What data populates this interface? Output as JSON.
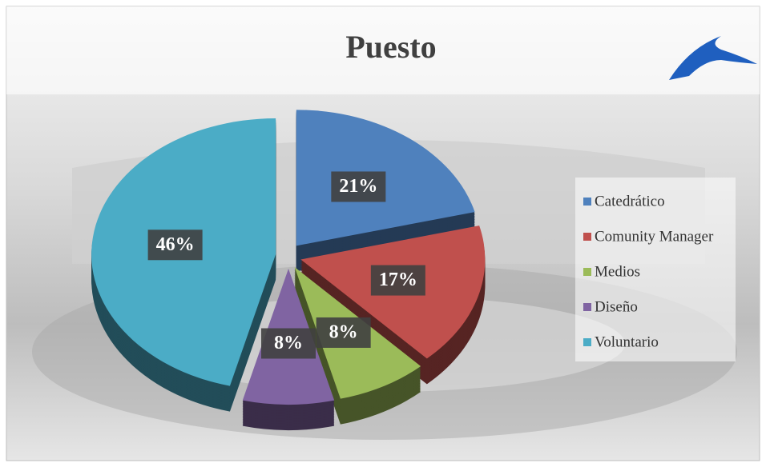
{
  "chart_data": {
    "type": "pie",
    "title": "Puesto",
    "categories": [
      "Catedrático",
      "Comunity Manager",
      "Medios",
      "Diseño",
      "Voluntario"
    ],
    "values": [
      21,
      17,
      8,
      8,
      46
    ],
    "value_labels": [
      "21%",
      "17%",
      "8%",
      "8%",
      "46%"
    ],
    "colors": [
      "#4f81bd",
      "#c0504d",
      "#9bbb59",
      "#8064a2",
      "#4bacc6"
    ],
    "legend": "right"
  }
}
